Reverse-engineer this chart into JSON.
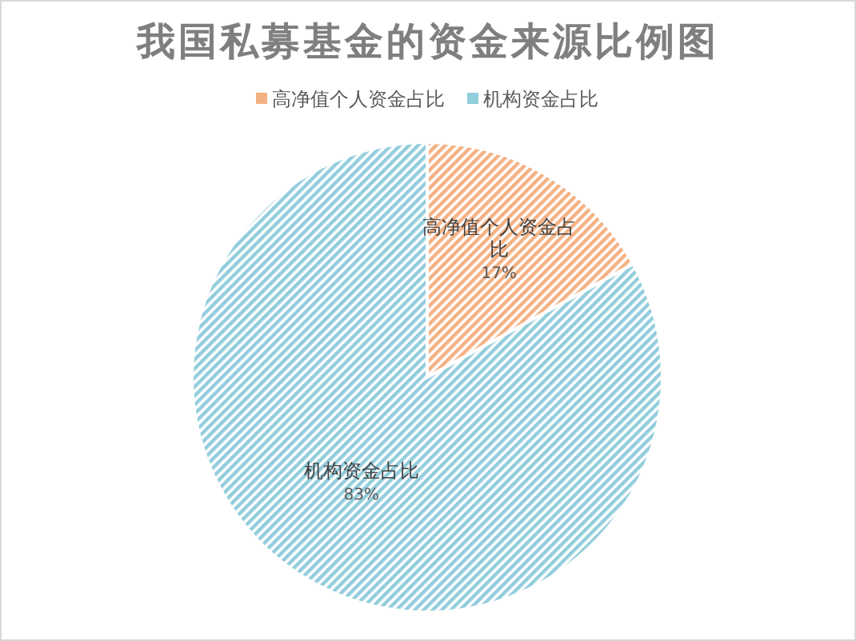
{
  "chart_data": {
    "type": "pie",
    "title": "我国私募基金的资金来源比例图",
    "categories": [
      "高净值个人资金占比",
      "机构资金占比"
    ],
    "values": [
      17,
      83
    ],
    "colors": [
      "#f4b183",
      "#92cddc"
    ],
    "value_labels": [
      "17%",
      "83%"
    ],
    "legend": "top"
  }
}
